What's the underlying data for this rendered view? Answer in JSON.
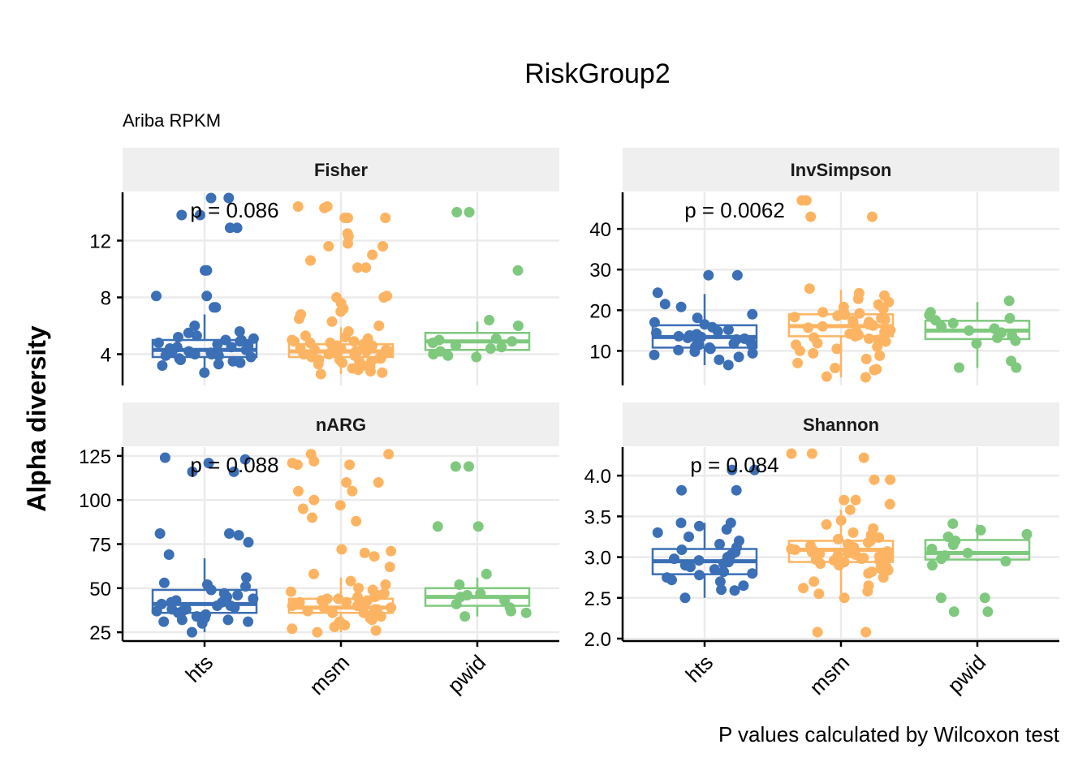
{
  "chart_data": {
    "type": "box",
    "title": "RiskGroup2",
    "subtitle": "Ariba RPKM",
    "caption": "P values calculated by Wilcoxon test",
    "ylabel": "Alpha diversity",
    "xlabel": "",
    "categories": [
      "hts",
      "msm",
      "pwid"
    ],
    "colors": {
      "hts": "#3b6fb6",
      "msm": "#fdb462",
      "pwid": "#7fc97f"
    },
    "grid": true,
    "legend": "none",
    "panels": [
      {
        "name": "Fisher",
        "p_label": "p = 0.086",
        "ylim": [
          1.8,
          15.4
        ],
        "yticks": [
          4,
          8,
          12
        ],
        "boxes": {
          "hts": {
            "q1": 3.8,
            "median": 4.3,
            "q3": 5.0,
            "whisker_low": 2.7,
            "whisker_high": 6.8
          },
          "msm": {
            "q1": 3.8,
            "median": 4.2,
            "q3": 4.7,
            "whisker_low": 2.6,
            "whisker_high": 5.9
          },
          "pwid": {
            "q1": 4.3,
            "median": 4.9,
            "q3": 5.5,
            "whisker_low": 3.7,
            "whisker_high": 6.3
          }
        },
        "points": {
          "hts": [
            15.0,
            15.0,
            13.8,
            13.8,
            12.9,
            12.9,
            9.9,
            9.9,
            8.1,
            8.1,
            7.3,
            7.3,
            6.0,
            5.6,
            5.5,
            5.3,
            5.2,
            5.1,
            5.0,
            5.0,
            4.9,
            4.8,
            4.7,
            4.6,
            4.5,
            4.5,
            4.4,
            4.3,
            4.2,
            4.2,
            4.1,
            4.1,
            4.0,
            4.0,
            3.9,
            3.9,
            3.8,
            3.7,
            3.6,
            3.5,
            3.4,
            3.3,
            3.2,
            2.7
          ],
          "msm": [
            14.4,
            14.4,
            14.3,
            13.6,
            13.6,
            13.6,
            12.5,
            12.3,
            11.8,
            11.6,
            11.6,
            11.0,
            10.6,
            10.1,
            10.1,
            8.1,
            8.0,
            8.0,
            7.6,
            7.2,
            7.0,
            6.8,
            6.5,
            6.3,
            6.0,
            5.6,
            5.3,
            5.2,
            5.1,
            5.0,
            4.9,
            4.9,
            4.8,
            4.8,
            4.7,
            4.7,
            4.6,
            4.6,
            4.5,
            4.5,
            4.5,
            4.4,
            4.4,
            4.3,
            4.3,
            4.3,
            4.2,
            4.2,
            4.2,
            4.1,
            4.1,
            4.1,
            4.0,
            4.0,
            4.0,
            3.9,
            3.9,
            3.8,
            3.8,
            3.7,
            3.7,
            3.6,
            3.6,
            3.5,
            3.5,
            3.4,
            3.3,
            3.2,
            3.1,
            3.0,
            2.9,
            2.8,
            2.7,
            2.6
          ],
          "pwid": [
            14.0,
            14.0,
            9.9,
            6.4,
            6.0,
            5.1,
            5.0,
            4.9,
            4.8,
            4.6,
            4.5,
            4.4,
            4.2,
            4.0,
            3.9,
            3.8
          ]
        }
      },
      {
        "name": "InvSimpson",
        "p_label": "p = 0.0062",
        "ylim": [
          1.5,
          49
        ],
        "yticks": [
          10,
          20,
          30,
          40
        ],
        "boxes": {
          "hts": {
            "q1": 10.8,
            "median": 13.4,
            "q3": 16.3,
            "whisker_low": 6.5,
            "whisker_high": 24.0
          },
          "msm": {
            "q1": 13.6,
            "median": 16.1,
            "q3": 19.0,
            "whisker_low": 3.5,
            "whisker_high": 25.0
          },
          "pwid": {
            "q1": 12.9,
            "median": 15.0,
            "q3": 17.4,
            "whisker_low": 5.8,
            "whisker_high": 22.0
          }
        },
        "points": {
          "hts": [
            28.6,
            28.6,
            24.3,
            21.5,
            20.8,
            19.0,
            18.1,
            17.0,
            16.5,
            15.8,
            15.2,
            14.8,
            14.4,
            14.1,
            13.8,
            13.6,
            13.4,
            13.2,
            13.0,
            12.8,
            12.5,
            12.2,
            12.0,
            11.8,
            11.5,
            11.2,
            11.0,
            10.8,
            10.5,
            10.2,
            9.8,
            9.4,
            9.0,
            8.5,
            7.8,
            6.5
          ],
          "msm": [
            47.0,
            47.0,
            43.0,
            43.0,
            25.3,
            24.2,
            23.6,
            22.8,
            22.0,
            21.4,
            20.8,
            20.3,
            19.8,
            19.5,
            19.2,
            18.9,
            18.6,
            18.3,
            18.0,
            17.7,
            17.4,
            17.1,
            16.8,
            16.5,
            16.2,
            16.0,
            15.7,
            15.4,
            15.1,
            14.8,
            14.5,
            14.2,
            13.9,
            13.6,
            13.3,
            13.0,
            12.7,
            12.3,
            11.9,
            11.5,
            11.0,
            10.5,
            10.0,
            9.4,
            8.8,
            8.0,
            7.0,
            5.8,
            5.5,
            5.3,
            3.7,
            3.5
          ],
          "pwid": [
            22.3,
            19.5,
            18.8,
            18.0,
            17.5,
            16.8,
            16.0,
            15.5,
            15.0,
            14.5,
            13.8,
            13.2,
            12.5,
            11.8,
            7.5,
            5.9,
            5.9
          ]
        }
      },
      {
        "name": "nARG",
        "p_label": "p = 0.088",
        "ylim": [
          20,
          130
        ],
        "yticks": [
          25,
          50,
          75,
          100,
          125
        ],
        "boxes": {
          "hts": {
            "q1": 36,
            "median": 41,
            "q3": 49,
            "whisker_low": 25,
            "whisker_high": 67
          },
          "msm": {
            "q1": 36,
            "median": 39,
            "q3": 44,
            "whisker_low": 25,
            "whisker_high": 56
          },
          "pwid": {
            "q1": 40,
            "median": 45,
            "q3": 50,
            "whisker_low": 34,
            "whisker_high": 56
          }
        },
        "points": {
          "hts": [
            124,
            123,
            121,
            116,
            116,
            81,
            81,
            80,
            76,
            69,
            56,
            53,
            52,
            51,
            49,
            47,
            46,
            45,
            44,
            43,
            42,
            42,
            41,
            40,
            40,
            39,
            38,
            38,
            37,
            37,
            36,
            35,
            34,
            33,
            32,
            32,
            31,
            31,
            30,
            25
          ],
          "msm": [
            126,
            126,
            122,
            121,
            120,
            120,
            110,
            110,
            105,
            105,
            100,
            97,
            95,
            90,
            88,
            72,
            71,
            70,
            68,
            62,
            58,
            54,
            52,
            50,
            49,
            48,
            47,
            46,
            45,
            45,
            44,
            44,
            43,
            43,
            42,
            42,
            41,
            41,
            40,
            40,
            39,
            39,
            38,
            38,
            37,
            37,
            36,
            36,
            35,
            35,
            34,
            33,
            32,
            31,
            30,
            29,
            28,
            27,
            26,
            25
          ],
          "pwid": [
            119,
            119,
            85,
            85,
            58,
            52,
            47,
            46,
            45,
            43,
            41,
            39,
            37,
            36,
            34
          ]
        }
      },
      {
        "name": "Shannon",
        "p_label": "p = 0.084",
        "ylim": [
          1.97,
          4.35
        ],
        "yticks": [
          2.0,
          2.5,
          3.0,
          3.5,
          4.0
        ],
        "ytick_labels": [
          "2.0",
          "2.5",
          "3.0",
          "3.5",
          "4.0"
        ],
        "boxes": {
          "hts": {
            "q1": 2.79,
            "median": 2.95,
            "q3": 3.1,
            "whisker_low": 2.5,
            "whisker_high": 3.42
          },
          "msm": {
            "q1": 2.94,
            "median": 3.09,
            "q3": 3.2,
            "whisker_low": 2.55,
            "whisker_high": 3.58
          },
          "pwid": {
            "q1": 2.97,
            "median": 3.05,
            "q3": 3.21,
            "whisker_low": 2.95,
            "whisker_high": 3.4
          }
        },
        "points": {
          "hts": [
            4.07,
            4.07,
            3.82,
            3.82,
            3.42,
            3.42,
            3.38,
            3.34,
            3.3,
            3.25,
            3.2,
            3.16,
            3.12,
            3.09,
            3.06,
            3.03,
            3.0,
            2.98,
            2.96,
            2.94,
            2.92,
            2.9,
            2.88,
            2.85,
            2.82,
            2.8,
            2.78,
            2.75,
            2.72,
            2.7,
            2.65,
            2.6,
            2.59,
            2.5
          ],
          "msm": [
            4.27,
            4.27,
            4.22,
            3.95,
            3.95,
            3.7,
            3.7,
            3.65,
            3.58,
            3.45,
            3.4,
            3.35,
            3.3,
            3.27,
            3.24,
            3.22,
            3.2,
            3.18,
            3.16,
            3.14,
            3.12,
            3.1,
            3.09,
            3.08,
            3.07,
            3.06,
            3.05,
            3.04,
            3.03,
            3.02,
            3.01,
            3.0,
            2.99,
            2.98,
            2.97,
            2.96,
            2.95,
            2.94,
            2.92,
            2.9,
            2.88,
            2.86,
            2.84,
            2.82,
            2.8,
            2.75,
            2.7,
            2.65,
            2.62,
            2.58,
            2.55,
            2.5,
            2.08,
            2.08
          ],
          "pwid": [
            3.41,
            3.33,
            3.28,
            3.25,
            3.2,
            3.15,
            3.1,
            3.05,
            3.02,
            2.98,
            2.95,
            2.9,
            2.5,
            2.5,
            2.33,
            2.33
          ]
        }
      }
    ]
  }
}
